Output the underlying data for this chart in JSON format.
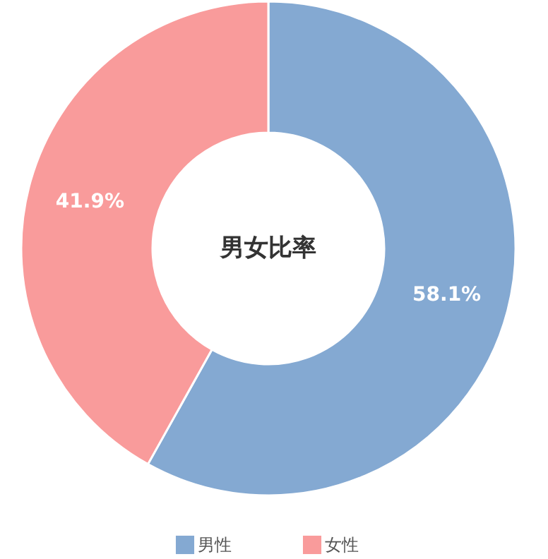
{
  "chart_data": {
    "type": "donut",
    "title": "男女比率",
    "categories": [
      "男性",
      "女性"
    ],
    "values": [
      58.1,
      41.9
    ],
    "colors": [
      "#84a9d2",
      "#f99b9b"
    ],
    "value_labels": [
      "58.1%",
      "41.9%"
    ],
    "legend": "bottom"
  }
}
